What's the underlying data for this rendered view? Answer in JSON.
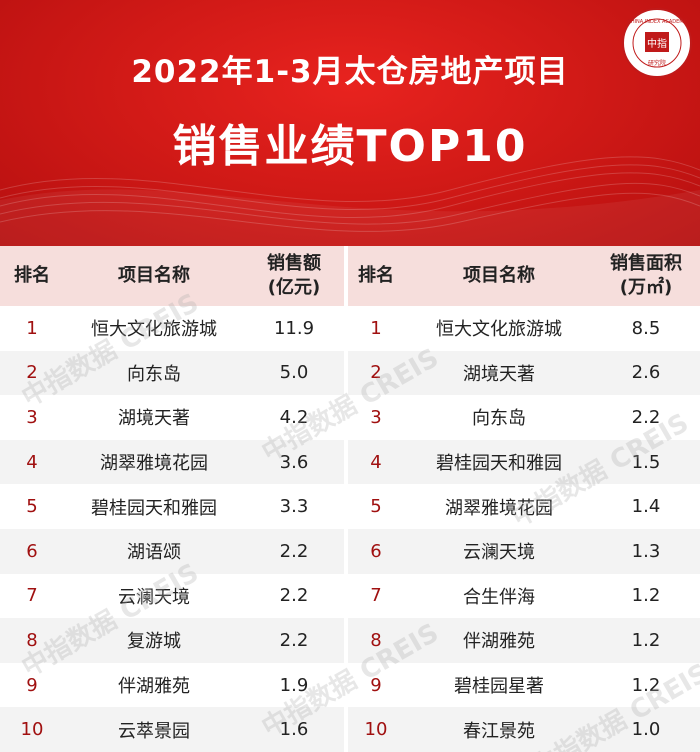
{
  "banner": {
    "title_line1": "2022年1-3月太仓房地产项目",
    "title_line2": "销售业绩TOP10",
    "logo_text_top": "CHINA INDEX ACADEMY",
    "logo_text_center": "中指",
    "logo_text_bottom": "研究院",
    "accent_color": "#d21a17"
  },
  "left_table": {
    "headers": {
      "rank": "排名",
      "name": "项目名称",
      "value": "销售额\n(亿元)"
    },
    "rows": [
      {
        "rank": "1",
        "name": "恒大文化旅游城",
        "value": "11.9"
      },
      {
        "rank": "2",
        "name": "向东岛",
        "value": "5.0"
      },
      {
        "rank": "3",
        "name": "湖境天著",
        "value": "4.2"
      },
      {
        "rank": "4",
        "name": "湖翠雅境花园",
        "value": "3.6"
      },
      {
        "rank": "5",
        "name": "碧桂园天和雅园",
        "value": "3.3"
      },
      {
        "rank": "6",
        "name": "湖语颂",
        "value": "2.2"
      },
      {
        "rank": "7",
        "name": "云澜天境",
        "value": "2.2"
      },
      {
        "rank": "8",
        "name": "复游城",
        "value": "2.2"
      },
      {
        "rank": "9",
        "name": "伴湖雅苑",
        "value": "1.9"
      },
      {
        "rank": "10",
        "name": "云萃景园",
        "value": "1.6"
      }
    ]
  },
  "right_table": {
    "headers": {
      "rank": "排名",
      "name": "项目名称",
      "value": "销售面积\n(万㎡)"
    },
    "rows": [
      {
        "rank": "1",
        "name": "恒大文化旅游城",
        "value": "8.5"
      },
      {
        "rank": "2",
        "name": "湖境天著",
        "value": "2.6"
      },
      {
        "rank": "3",
        "name": "向东岛",
        "value": "2.2"
      },
      {
        "rank": "4",
        "name": "碧桂园天和雅园",
        "value": "1.5"
      },
      {
        "rank": "5",
        "name": "湖翠雅境花园",
        "value": "1.4"
      },
      {
        "rank": "6",
        "name": "云澜天境",
        "value": "1.3"
      },
      {
        "rank": "7",
        "name": "合生伴海",
        "value": "1.2"
      },
      {
        "rank": "8",
        "name": "伴湖雅苑",
        "value": "1.2"
      },
      {
        "rank": "9",
        "name": "碧桂园星著",
        "value": "1.2"
      },
      {
        "rank": "10",
        "name": "春江景苑",
        "value": "1.0"
      }
    ]
  },
  "watermark": "中指数据 CREIS"
}
